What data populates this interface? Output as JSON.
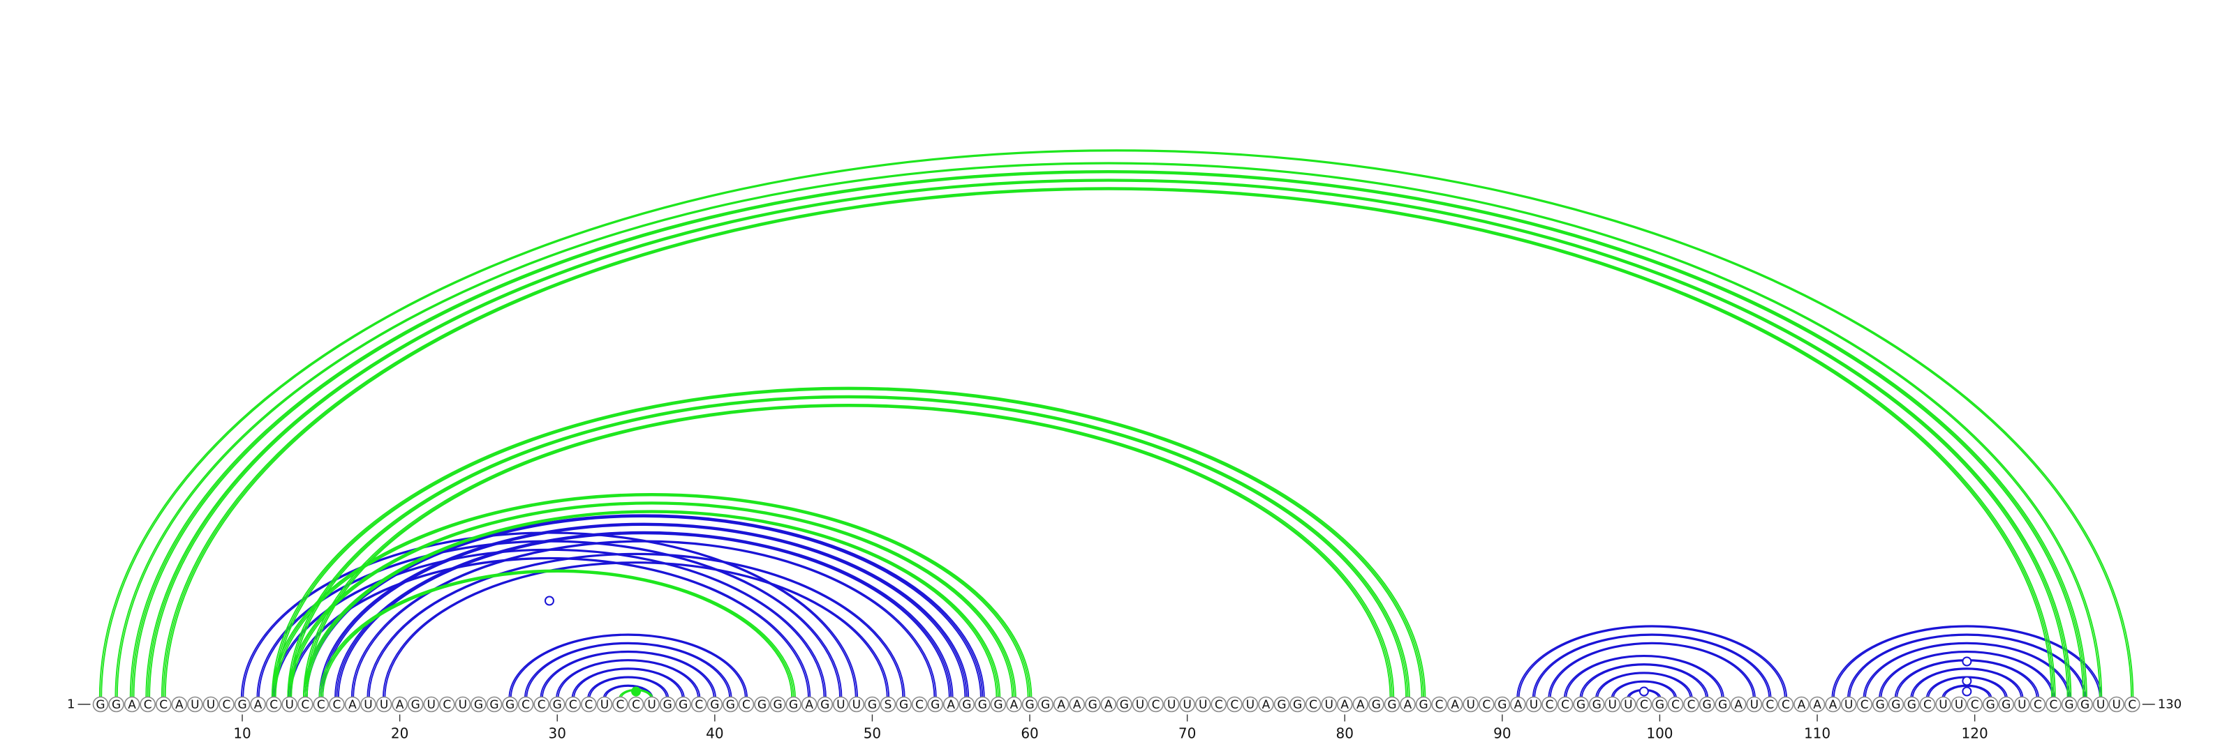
{
  "sequence": "GGACCAUUCGACUCCCAUUAGUCUGGGCCGCCUCCUGGCGGCGGGAGUUGSGCGAGGGAGGAAGAGUCUUUCCUAGGCUAAGGAGCAUCGAUCCGGUUCGCCGGAUCCAAAUCGGGCUUCGGUCCGGUUC",
  "start_label": "1",
  "end_label": "130",
  "ticks": [
    "10",
    "20",
    "30",
    "40",
    "50",
    "60",
    "70",
    "80",
    "90",
    "100",
    "110",
    "120"
  ],
  "colors": {
    "green": "#1ee61e",
    "blue": "#1a14d6"
  },
  "arcs_green": [
    [
      1,
      130,
      2
    ],
    [
      2,
      128,
      2
    ],
    [
      3,
      127,
      3
    ],
    [
      4,
      126,
      3
    ],
    [
      5,
      125,
      3
    ],
    [
      12,
      60,
      3
    ],
    [
      13,
      59,
      3
    ],
    [
      14,
      58,
      3
    ],
    [
      15,
      45,
      3
    ],
    [
      34,
      36,
      2
    ],
    [
      12,
      85,
      3
    ],
    [
      13,
      84,
      3
    ],
    [
      14,
      83,
      3
    ]
  ],
  "arcs_blue": [
    [
      10,
      49,
      2
    ],
    [
      11,
      48,
      2
    ],
    [
      12,
      47,
      2
    ],
    [
      13,
      46,
      2
    ],
    [
      14,
      57,
      3
    ],
    [
      15,
      56,
      3
    ],
    [
      16,
      55,
      3
    ],
    [
      17,
      54,
      2
    ],
    [
      18,
      52,
      2
    ],
    [
      19,
      51,
      2
    ],
    [
      27,
      42,
      2
    ],
    [
      28,
      41,
      2
    ],
    [
      29,
      40,
      2
    ],
    [
      30,
      39,
      2
    ],
    [
      31,
      38,
      2
    ],
    [
      32,
      37,
      2
    ],
    [
      33,
      36,
      2
    ],
    [
      91,
      108,
      2
    ],
    [
      92,
      107,
      2
    ],
    [
      93,
      106,
      2
    ],
    [
      94,
      104,
      2
    ],
    [
      95,
      103,
      2
    ],
    [
      96,
      102,
      2
    ],
    [
      97,
      101,
      2
    ],
    [
      98,
      100,
      2
    ],
    [
      111,
      128,
      2
    ],
    [
      112,
      127,
      2
    ],
    [
      113,
      126,
      2
    ],
    [
      114,
      125,
      2
    ],
    [
      115,
      124,
      2
    ],
    [
      116,
      123,
      2
    ],
    [
      117,
      122,
      2
    ],
    [
      118,
      121,
      2
    ]
  ],
  "markers": [
    {
      "pos": 29.5,
      "height": 130,
      "color": "blue",
      "filled": false
    },
    {
      "pos": 35,
      "height": 0,
      "color": "green",
      "filled": true
    },
    {
      "pos": 99,
      "height": 0,
      "color": "blue",
      "filled": false
    },
    {
      "pos": 119.5,
      "height": 43,
      "color": "blue",
      "filled": false
    },
    {
      "pos": 119.5,
      "height": 15,
      "color": "blue",
      "filled": false
    },
    {
      "pos": 119.5,
      "height": 0,
      "color": "blue",
      "filled": false
    }
  ]
}
